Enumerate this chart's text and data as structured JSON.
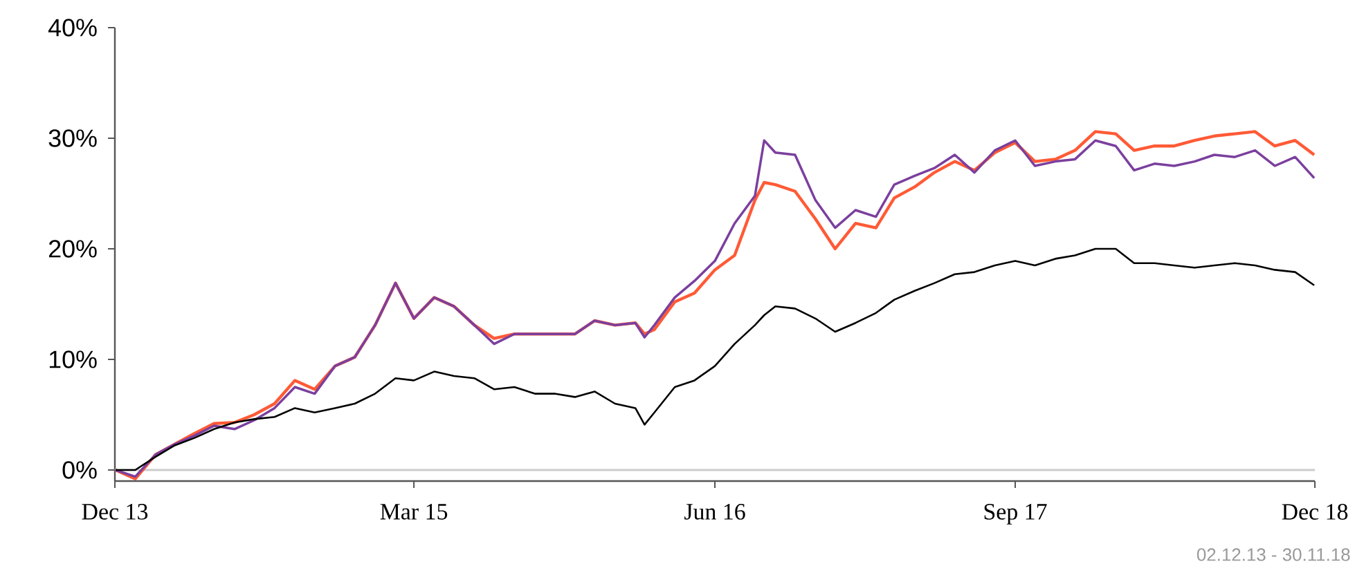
{
  "chart_data": {
    "type": "line",
    "x": [
      "2013-12-02",
      "2014-01-01",
      "2014-02-01",
      "2014-03-01",
      "2014-04-01",
      "2014-05-01",
      "2014-06-01",
      "2014-07-01",
      "2014-08-01",
      "2014-09-01",
      "2014-10-01",
      "2014-11-01",
      "2014-12-01",
      "2015-01-01",
      "2015-02-01",
      "2015-03-01",
      "2015-04-01",
      "2015-05-01",
      "2015-06-01",
      "2015-07-01",
      "2015-08-01",
      "2015-09-01",
      "2015-10-01",
      "2015-11-01",
      "2015-12-01",
      "2016-01-01",
      "2016-02-01",
      "2016-02-15",
      "2016-03-01",
      "2016-04-01",
      "2016-05-01",
      "2016-06-01",
      "2016-07-01",
      "2016-08-01",
      "2016-08-15",
      "2016-09-01",
      "2016-10-01",
      "2016-11-01",
      "2016-12-01",
      "2017-01-01",
      "2017-02-01",
      "2017-03-01",
      "2017-04-01",
      "2017-05-01",
      "2017-06-01",
      "2017-07-01",
      "2017-08-01",
      "2017-09-01",
      "2017-10-01",
      "2017-11-01",
      "2017-12-01",
      "2018-01-01",
      "2018-02-01",
      "2018-03-01",
      "2018-04-01",
      "2018-05-01",
      "2018-06-01",
      "2018-07-01",
      "2018-08-01",
      "2018-09-01",
      "2018-10-01",
      "2018-11-01",
      "2018-11-30"
    ],
    "series": [
      {
        "color": "#ff5a36",
        "values": [
          0,
          -0.8,
          1.4,
          2.3,
          3.3,
          4.2,
          4.3,
          5.0,
          6.0,
          8.1,
          7.3,
          9.4,
          10.2,
          13.1,
          16.9,
          13.7,
          15.6,
          14.8,
          13.1,
          11.9,
          12.3,
          12.3,
          12.3,
          12.3,
          13.5,
          13.1,
          13.3,
          12.3,
          12.7,
          15.2,
          16.0,
          18.1,
          19.4,
          24.4,
          26.0,
          25.8,
          25.2,
          22.7,
          20.0,
          22.3,
          21.9,
          24.6,
          25.6,
          26.9,
          27.9,
          27.1,
          28.7,
          29.6,
          27.9,
          28.1,
          28.9,
          30.6,
          30.4,
          28.9,
          29.3,
          29.3,
          29.8,
          30.2,
          30.4,
          30.6,
          29.3,
          29.8,
          28.5
        ]
      },
      {
        "color": "#7b3f9e",
        "values": [
          0,
          -0.6,
          1.4,
          2.3,
          3.1,
          4.0,
          3.7,
          4.5,
          5.6,
          7.5,
          6.9,
          9.4,
          10.2,
          13.1,
          16.9,
          13.7,
          15.6,
          14.8,
          13.1,
          11.4,
          12.3,
          12.3,
          12.3,
          12.3,
          13.5,
          13.1,
          13.3,
          12.0,
          13.1,
          15.6,
          17.1,
          18.9,
          22.3,
          24.8,
          29.8,
          28.7,
          28.5,
          24.4,
          21.9,
          23.5,
          22.9,
          25.8,
          26.6,
          27.3,
          28.5,
          26.9,
          28.9,
          29.8,
          27.5,
          27.9,
          28.1,
          29.8,
          29.3,
          27.1,
          27.7,
          27.5,
          27.9,
          28.5,
          28.3,
          28.9,
          27.5,
          28.3,
          26.4
        ]
      },
      {
        "color": "#000000",
        "values": [
          0,
          0,
          1.2,
          2.2,
          2.9,
          3.7,
          4.3,
          4.6,
          4.8,
          5.6,
          5.2,
          5.6,
          6.0,
          6.9,
          8.3,
          8.1,
          8.9,
          8.5,
          8.3,
          7.3,
          7.5,
          6.9,
          6.9,
          6.6,
          7.1,
          6.0,
          5.6,
          4.1,
          5.2,
          7.5,
          8.1,
          9.4,
          11.4,
          13.1,
          14.0,
          14.8,
          14.6,
          13.7,
          12.5,
          13.3,
          14.2,
          15.4,
          16.2,
          16.9,
          17.7,
          17.9,
          18.5,
          18.9,
          18.5,
          19.1,
          19.4,
          20.0,
          20.0,
          18.7,
          18.7,
          18.5,
          18.3,
          18.5,
          18.7,
          18.5,
          18.1,
          17.9,
          16.7
        ]
      }
    ],
    "xlim": [
      "2013-12-01",
      "2018-12-01"
    ],
    "xticks": [
      {
        "value": "2013-12-01",
        "label": "Dec 13"
      },
      {
        "value": "2015-03-01",
        "label": "Mar 15"
      },
      {
        "value": "2016-06-01",
        "label": "Jun 16"
      },
      {
        "value": "2017-09-01",
        "label": "Sep 17"
      },
      {
        "value": "2018-12-01",
        "label": "Dec 18"
      }
    ],
    "ylim": [
      -1,
      40
    ],
    "yticks": [
      {
        "value": 0,
        "label": "0%"
      },
      {
        "value": 10,
        "label": "10%"
      },
      {
        "value": 20,
        "label": "20%"
      },
      {
        "value": 30,
        "label": "30%"
      },
      {
        "value": 40,
        "label": "40%"
      }
    ],
    "ref_lines": [
      {
        "axis": "y",
        "value": 0,
        "color": "#cccccc"
      }
    ],
    "annotations": [
      "02.12.13 - 30.11.18"
    ]
  }
}
